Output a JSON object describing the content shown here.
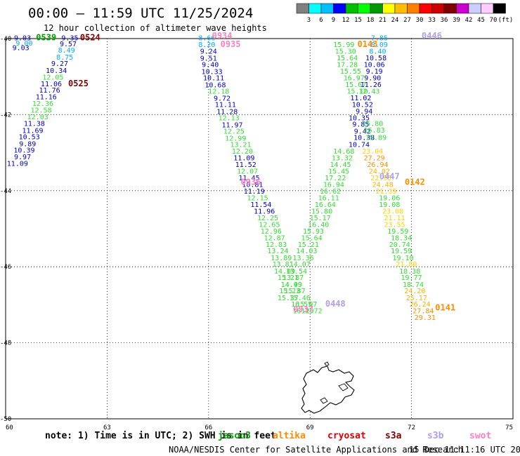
{
  "header": {
    "title": "00:00 — 11:59 UTC 11/25/2024",
    "subtitle": "12 hour collection of altimeter wave heights"
  },
  "colorbar": {
    "colors": [
      "#808080",
      "#00ffff",
      "#00bfff",
      "#0000ff",
      "#00bf00",
      "#00ff00",
      "#009900",
      "#ffff00",
      "#ffbf00",
      "#ff8000",
      "#ff0000",
      "#cc0000",
      "#800000",
      "#cc00cc",
      "#ccccff",
      "#ffccff",
      "#000000"
    ],
    "ticks": [
      "3",
      "6",
      "9",
      "12",
      "15",
      "18",
      "21",
      "24",
      "27",
      "30",
      "33",
      "36",
      "39",
      "42",
      "45",
      "70",
      "(ft)"
    ]
  },
  "chart_data": {
    "type": "scatter",
    "title": "00:00 — 11:59 UTC 11/25/2024",
    "subtitle": "12 hour collection of altimeter wave heights",
    "xlabel": "",
    "ylabel": "",
    "xlim": [
      60,
      75
    ],
    "ylim": [
      -50,
      -40
    ],
    "x_ticks": [
      "60",
      "63",
      "66",
      "69",
      "72",
      "75"
    ],
    "y_ticks": [
      "-40",
      "-42",
      "-44",
      "-46",
      "-48",
      "-50"
    ],
    "grid": true,
    "unit": "ft",
    "satellites": [
      {
        "name": "jason3",
        "label": "jason3",
        "color": "#00a000"
      },
      {
        "name": "altika",
        "label": "altika",
        "color": "#ff8c00"
      },
      {
        "name": "cryosat",
        "label": "cryosat",
        "color": "#e00000"
      },
      {
        "name": "s3a",
        "label": "s3a",
        "color": "#800000"
      },
      {
        "name": "s3b",
        "label": "s3b",
        "color": "#b0a0e8"
      },
      {
        "name": "swot",
        "label": "swot",
        "color": "#ff80c0"
      }
    ],
    "pass_labels": [
      {
        "text": "0539",
        "sat": "jason3",
        "lon": 61.2,
        "lat": -40.05
      },
      {
        "text": "0524",
        "sat": "s3a",
        "lon": 62.5,
        "lat": -40.05
      },
      {
        "text": "0525",
        "sat": "s3a",
        "lon": 62.15,
        "lat": -41.25
      },
      {
        "text": "0934",
        "sat": "swot",
        "lon": 66.4,
        "lat": -40.0
      },
      {
        "text": "0935",
        "sat": "swot",
        "lon": 66.65,
        "lat": -40.22
      },
      {
        "text": "0936",
        "sat": "swot",
        "lon": 67.25,
        "lat": -43.85
      },
      {
        "text": "0937",
        "sat": "swot",
        "lon": 68.8,
        "lat": -47.2
      },
      {
        "text": "0448",
        "sat": "s3b",
        "lon": 69.75,
        "lat": -47.05
      },
      {
        "text": "0143",
        "sat": "altika",
        "lon": 70.7,
        "lat": -40.22
      },
      {
        "text": "0446",
        "sat": "s3b",
        "lon": 72.6,
        "lat": -40.0
      },
      {
        "text": "0447",
        "sat": "s3b",
        "lon": 71.35,
        "lat": -43.7
      },
      {
        "text": "0142",
        "sat": "altika",
        "lon": 72.1,
        "lat": -43.85
      },
      {
        "text": "0141",
        "sat": "altika",
        "lon": 73.0,
        "lat": -47.15
      }
    ],
    "points": [
      {
        "lon": 60.5,
        "lat": -40.05,
        "v": "9.03",
        "c": "#0000cc"
      },
      {
        "lon": 60.55,
        "lat": -40.18,
        "v": "9.00",
        "c": "#00aaff"
      },
      {
        "lon": 60.45,
        "lat": -40.3,
        "v": "9.03",
        "c": "#0000cc"
      },
      {
        "lon": 61.9,
        "lat": -40.05,
        "v": "9.35",
        "c": "#0000cc"
      },
      {
        "lon": 61.85,
        "lat": -40.2,
        "v": "9.57",
        "c": "#0000cc"
      },
      {
        "lon": 61.8,
        "lat": -40.37,
        "v": "8.49",
        "c": "#00aaff"
      },
      {
        "lon": 61.75,
        "lat": -40.55,
        "v": "8.75",
        "c": "#00aaff"
      },
      {
        "lon": 61.6,
        "lat": -40.72,
        "v": "9.27",
        "c": "#0000cc"
      },
      {
        "lon": 61.5,
        "lat": -40.9,
        "v": "10.34",
        "c": "#0000cc"
      },
      {
        "lon": 61.4,
        "lat": -41.08,
        "v": "12.05",
        "c": "#33dd33"
      },
      {
        "lon": 61.35,
        "lat": -41.25,
        "v": "11.06",
        "c": "#0000cc"
      },
      {
        "lon": 61.3,
        "lat": -41.42,
        "v": "11.76",
        "c": "#0000cc"
      },
      {
        "lon": 61.2,
        "lat": -41.6,
        "v": "11.16",
        "c": "#0000cc"
      },
      {
        "lon": 61.1,
        "lat": -41.77,
        "v": "12.36",
        "c": "#33dd33"
      },
      {
        "lon": 61.05,
        "lat": -41.95,
        "v": "12.58",
        "c": "#33dd33"
      },
      {
        "lon": 60.95,
        "lat": -42.12,
        "v": "12.03",
        "c": "#33dd33"
      },
      {
        "lon": 60.85,
        "lat": -42.3,
        "v": "11.38",
        "c": "#0000cc"
      },
      {
        "lon": 60.8,
        "lat": -42.48,
        "v": "11.69",
        "c": "#0000cc"
      },
      {
        "lon": 60.7,
        "lat": -42.65,
        "v": "10.53",
        "c": "#0000cc"
      },
      {
        "lon": 60.65,
        "lat": -42.83,
        "v": "9.89",
        "c": "#0000cc"
      },
      {
        "lon": 60.55,
        "lat": -43.0,
        "v": "10.39",
        "c": "#0000cc"
      },
      {
        "lon": 60.5,
        "lat": -43.17,
        "v": "9.97",
        "c": "#0000cc"
      },
      {
        "lon": 60.35,
        "lat": -43.35,
        "v": "11.09",
        "c": "#0000cc"
      },
      {
        "lon": 65.95,
        "lat": -40.05,
        "v": "8.66",
        "c": "#00aaff"
      },
      {
        "lon": 65.95,
        "lat": -40.22,
        "v": "8.20",
        "c": "#00aaff"
      },
      {
        "lon": 66.0,
        "lat": -40.4,
        "v": "9.24",
        "c": "#0000cc"
      },
      {
        "lon": 66.0,
        "lat": -40.58,
        "v": "9.51",
        "c": "#0000cc"
      },
      {
        "lon": 66.05,
        "lat": -40.75,
        "v": "9.40",
        "c": "#0000cc"
      },
      {
        "lon": 66.1,
        "lat": -40.93,
        "v": "10.33",
        "c": "#0000cc"
      },
      {
        "lon": 66.15,
        "lat": -41.1,
        "v": "10.11",
        "c": "#0000cc"
      },
      {
        "lon": 66.2,
        "lat": -41.28,
        "v": "10.68",
        "c": "#0000cc"
      },
      {
        "lon": 66.3,
        "lat": -41.45,
        "v": "12.18",
        "c": "#33dd33"
      },
      {
        "lon": 66.4,
        "lat": -41.63,
        "v": "9.72",
        "c": "#0000cc"
      },
      {
        "lon": 66.5,
        "lat": -41.8,
        "v": "11.11",
        "c": "#0000cc"
      },
      {
        "lon": 66.55,
        "lat": -41.98,
        "v": "11.28",
        "c": "#0000cc"
      },
      {
        "lon": 66.6,
        "lat": -42.15,
        "v": "12.13",
        "c": "#33dd33"
      },
      {
        "lon": 66.7,
        "lat": -42.33,
        "v": "11.97",
        "c": "#0000cc"
      },
      {
        "lon": 66.75,
        "lat": -42.5,
        "v": "12.25",
        "c": "#33dd33"
      },
      {
        "lon": 66.8,
        "lat": -42.68,
        "v": "12.99",
        "c": "#33dd33"
      },
      {
        "lon": 66.95,
        "lat": -42.85,
        "v": "13.21",
        "c": "#33dd33"
      },
      {
        "lon": 67.0,
        "lat": -43.03,
        "v": "12.20",
        "c": "#33dd33"
      },
      {
        "lon": 67.05,
        "lat": -43.2,
        "v": "11.09",
        "c": "#0000cc"
      },
      {
        "lon": 67.1,
        "lat": -43.38,
        "v": "11.52",
        "c": "#0000cc"
      },
      {
        "lon": 67.15,
        "lat": -43.55,
        "v": "12.07",
        "c": "#33dd33"
      },
      {
        "lon": 67.2,
        "lat": -43.73,
        "v": "11.45",
        "c": "#0000cc"
      },
      {
        "lon": 67.3,
        "lat": -43.9,
        "v": "10.81",
        "c": "#0000cc"
      },
      {
        "lon": 67.35,
        "lat": -44.08,
        "v": "11.19",
        "c": "#0000cc"
      },
      {
        "lon": 67.45,
        "lat": -44.25,
        "v": "12.15",
        "c": "#33dd33"
      },
      {
        "lon": 67.55,
        "lat": -44.43,
        "v": "11.54",
        "c": "#0000cc"
      },
      {
        "lon": 67.65,
        "lat": -44.6,
        "v": "11.96",
        "c": "#0000cc"
      },
      {
        "lon": 67.75,
        "lat": -44.78,
        "v": "12.25",
        "c": "#33dd33"
      },
      {
        "lon": 67.8,
        "lat": -44.95,
        "v": "12.65",
        "c": "#33dd33"
      },
      {
        "lon": 67.85,
        "lat": -45.13,
        "v": "12.96",
        "c": "#33dd33"
      },
      {
        "lon": 67.95,
        "lat": -45.3,
        "v": "12.87",
        "c": "#33dd33"
      },
      {
        "lon": 68.0,
        "lat": -45.48,
        "v": "12.83",
        "c": "#33dd33"
      },
      {
        "lon": 68.05,
        "lat": -45.65,
        "v": "13.24",
        "c": "#33dd33"
      },
      {
        "lon": 68.15,
        "lat": -45.83,
        "v": "13.89",
        "c": "#33dd33"
      },
      {
        "lon": 68.2,
        "lat": -46.0,
        "v": "13.81",
        "c": "#33dd33"
      },
      {
        "lon": 68.25,
        "lat": -46.18,
        "v": "14.09",
        "c": "#33dd33"
      },
      {
        "lon": 68.35,
        "lat": -46.35,
        "v": "15.21",
        "c": "#33dd33"
      },
      {
        "lon": 68.45,
        "lat": -46.53,
        "v": "14.49",
        "c": "#33dd33"
      },
      {
        "lon": 68.55,
        "lat": -46.7,
        "v": "15.87",
        "c": "#33dd33"
      },
      {
        "lon": 68.7,
        "lat": -46.88,
        "v": "15.46",
        "c": "#33dd33"
      },
      {
        "lon": 68.75,
        "lat": -47.05,
        "v": "16.55",
        "c": "#33dd33"
      },
      {
        "lon": 68.8,
        "lat": -47.22,
        "v": "16.19",
        "c": "#33dd33"
      },
      {
        "lon": 70.0,
        "lat": -40.22,
        "v": "15.99",
        "c": "#33dd33"
      },
      {
        "lon": 70.05,
        "lat": -40.4,
        "v": "15.30",
        "c": "#33dd33"
      },
      {
        "lon": 70.1,
        "lat": -40.57,
        "v": "15.64",
        "c": "#33dd33"
      },
      {
        "lon": 70.1,
        "lat": -40.75,
        "v": "17.28",
        "c": "#33dd33"
      },
      {
        "lon": 70.2,
        "lat": -40.92,
        "v": "15.55",
        "c": "#33dd33"
      },
      {
        "lon": 70.3,
        "lat": -41.1,
        "v": "16.97",
        "c": "#33dd33"
      },
      {
        "lon": 70.35,
        "lat": -41.27,
        "v": "15.67",
        "c": "#33dd33"
      },
      {
        "lon": 70.4,
        "lat": -41.45,
        "v": "15.10",
        "c": "#33dd33"
      },
      {
        "lon": 70.5,
        "lat": -41.62,
        "v": "11.02",
        "c": "#0000cc"
      },
      {
        "lon": 70.55,
        "lat": -41.8,
        "v": "10.52",
        "c": "#0000cc"
      },
      {
        "lon": 70.6,
        "lat": -41.97,
        "v": "9.94",
        "c": "#0000cc"
      },
      {
        "lon": 70.45,
        "lat": -42.15,
        "v": "10.35",
        "c": "#0000cc"
      },
      {
        "lon": 70.5,
        "lat": -42.32,
        "v": "9.85",
        "c": "#0000cc"
      },
      {
        "lon": 70.55,
        "lat": -42.5,
        "v": "9.42",
        "c": "#0000cc"
      },
      {
        "lon": 70.6,
        "lat": -42.67,
        "v": "10.38",
        "c": "#0000cc"
      },
      {
        "lon": 70.45,
        "lat": -42.85,
        "v": "10.74",
        "c": "#0000cc"
      },
      {
        "lon": 70.85,
        "lat": -42.3,
        "v": "15.80",
        "c": "#33dd33"
      },
      {
        "lon": 70.9,
        "lat": -42.47,
        "v": "16.83",
        "c": "#33dd33"
      },
      {
        "lon": 70.95,
        "lat": -42.67,
        "v": "15.89",
        "c": "#33dd33"
      },
      {
        "lon": 71.05,
        "lat": -40.05,
        "v": "7.85",
        "c": "#00aaff"
      },
      {
        "lon": 71.05,
        "lat": -40.22,
        "v": "8.09",
        "c": "#00aaff"
      },
      {
        "lon": 71.0,
        "lat": -40.4,
        "v": "8.40",
        "c": "#00aaff"
      },
      {
        "lon": 70.95,
        "lat": -40.57,
        "v": "10.58",
        "c": "#0000cc"
      },
      {
        "lon": 70.9,
        "lat": -40.75,
        "v": "10.06",
        "c": "#0000cc"
      },
      {
        "lon": 70.9,
        "lat": -40.92,
        "v": "9.19",
        "c": "#0000cc"
      },
      {
        "lon": 70.85,
        "lat": -41.1,
        "v": "9.90",
        "c": "#0000cc"
      },
      {
        "lon": 70.8,
        "lat": -41.27,
        "v": "11.26",
        "c": "#0000cc"
      },
      {
        "lon": 70.75,
        "lat": -41.45,
        "v": "12.43",
        "c": "#33dd33"
      },
      {
        "lon": 70.0,
        "lat": -43.03,
        "v": "14.68",
        "c": "#33dd33"
      },
      {
        "lon": 69.95,
        "lat": -43.2,
        "v": "13.32",
        "c": "#33dd33"
      },
      {
        "lon": 69.9,
        "lat": -43.38,
        "v": "14.45",
        "c": "#33dd33"
      },
      {
        "lon": 69.85,
        "lat": -43.55,
        "v": "15.45",
        "c": "#33dd33"
      },
      {
        "lon": 69.75,
        "lat": -43.73,
        "v": "17.22",
        "c": "#33dd33"
      },
      {
        "lon": 69.7,
        "lat": -43.9,
        "v": "16.94",
        "c": "#33dd33"
      },
      {
        "lon": 69.6,
        "lat": -44.08,
        "v": "16.62",
        "c": "#33dd33"
      },
      {
        "lon": 69.55,
        "lat": -44.25,
        "v": "16.11",
        "c": "#33dd33"
      },
      {
        "lon": 69.45,
        "lat": -44.43,
        "v": "16.64",
        "c": "#33dd33"
      },
      {
        "lon": 69.35,
        "lat": -44.6,
        "v": "15.80",
        "c": "#33dd33"
      },
      {
        "lon": 69.3,
        "lat": -44.78,
        "v": "15.17",
        "c": "#33dd33"
      },
      {
        "lon": 69.25,
        "lat": -44.95,
        "v": "16.40",
        "c": "#33dd33"
      },
      {
        "lon": 69.1,
        "lat": -45.13,
        "v": "15.93",
        "c": "#33dd33"
      },
      {
        "lon": 69.05,
        "lat": -45.3,
        "v": "15.64",
        "c": "#33dd33"
      },
      {
        "lon": 68.95,
        "lat": -45.48,
        "v": "15.21",
        "c": "#33dd33"
      },
      {
        "lon": 68.9,
        "lat": -45.65,
        "v": "14.03",
        "c": "#33dd33"
      },
      {
        "lon": 68.8,
        "lat": -45.83,
        "v": "13.36",
        "c": "#33dd33"
      },
      {
        "lon": 68.7,
        "lat": -46.0,
        "v": "14.07",
        "c": "#33dd33"
      },
      {
        "lon": 68.6,
        "lat": -46.18,
        "v": "13.54",
        "c": "#33dd33"
      },
      {
        "lon": 68.5,
        "lat": -46.35,
        "v": "13.87",
        "c": "#33dd33"
      },
      {
        "lon": 68.45,
        "lat": -46.53,
        "v": "14.99",
        "c": "#33dd33"
      },
      {
        "lon": 68.4,
        "lat": -46.7,
        "v": "15.23",
        "c": "#33dd33"
      },
      {
        "lon": 68.35,
        "lat": -46.88,
        "v": "15.37",
        "c": "#33dd33"
      },
      {
        "lon": 68.9,
        "lat": -47.05,
        "v": "15.07",
        "c": "#33dd33"
      },
      {
        "lon": 69.05,
        "lat": -47.22,
        "v": "12.72",
        "c": "#33dd33"
      },
      {
        "lon": 70.85,
        "lat": -43.03,
        "v": "23.04",
        "c": "#ffd000"
      },
      {
        "lon": 70.9,
        "lat": -43.2,
        "v": "27.29",
        "c": "#ff8c00"
      },
      {
        "lon": 71.0,
        "lat": -43.38,
        "v": "26.94",
        "c": "#ff8c00"
      },
      {
        "lon": 71.05,
        "lat": -43.55,
        "v": "24.02",
        "c": "#ffb000"
      },
      {
        "lon": 71.1,
        "lat": -43.73,
        "v": "22.95",
        "c": "#ffd000"
      },
      {
        "lon": 71.15,
        "lat": -43.9,
        "v": "24.48",
        "c": "#ffb000"
      },
      {
        "lon": 71.25,
        "lat": -44.08,
        "v": "21.39",
        "c": "#ffd000"
      },
      {
        "lon": 71.35,
        "lat": -44.25,
        "v": "19.06",
        "c": "#33dd33"
      },
      {
        "lon": 71.35,
        "lat": -44.43,
        "v": "19.08",
        "c": "#33dd33"
      },
      {
        "lon": 71.45,
        "lat": -44.6,
        "v": "23.08",
        "c": "#ffd000"
      },
      {
        "lon": 71.5,
        "lat": -44.78,
        "v": "21.11",
        "c": "#ffd000"
      },
      {
        "lon": 71.5,
        "lat": -44.95,
        "v": "23.55",
        "c": "#ffd000"
      },
      {
        "lon": 71.6,
        "lat": -45.13,
        "v": "19.59",
        "c": "#33dd33"
      },
      {
        "lon": 71.7,
        "lat": -45.3,
        "v": "18.34",
        "c": "#33dd33"
      },
      {
        "lon": 71.65,
        "lat": -45.48,
        "v": "20.74",
        "c": "#33dd33"
      },
      {
        "lon": 71.7,
        "lat": -45.65,
        "v": "19.59",
        "c": "#33dd33"
      },
      {
        "lon": 71.75,
        "lat": -45.83,
        "v": "19.10",
        "c": "#33dd33"
      },
      {
        "lon": 71.85,
        "lat": -46.0,
        "v": "21.80",
        "c": "#ffd000"
      },
      {
        "lon": 71.95,
        "lat": -46.18,
        "v": "18.38",
        "c": "#33dd33"
      },
      {
        "lon": 72.0,
        "lat": -46.35,
        "v": "19.77",
        "c": "#33dd33"
      },
      {
        "lon": 72.05,
        "lat": -46.53,
        "v": "18.74",
        "c": "#33dd33"
      },
      {
        "lon": 72.1,
        "lat": -46.7,
        "v": "24.20",
        "c": "#ffb000"
      },
      {
        "lon": 72.15,
        "lat": -46.88,
        "v": "25.17",
        "c": "#ffb000"
      },
      {
        "lon": 72.25,
        "lat": -47.05,
        "v": "26.24",
        "c": "#ffb000"
      },
      {
        "lon": 72.35,
        "lat": -47.22,
        "v": "27.84",
        "c": "#ff8c00"
      },
      {
        "lon": 72.4,
        "lat": -47.4,
        "v": "29.31",
        "c": "#ff8c00"
      }
    ]
  },
  "footer": {
    "note": "note: 1) Time is in UTC; 2) SWH is in feet",
    "credit": "NOAA/NESDIS Center for Satellite Applications and Research",
    "timestamp": "15 Dec 11:11:16 UTC 2024"
  }
}
